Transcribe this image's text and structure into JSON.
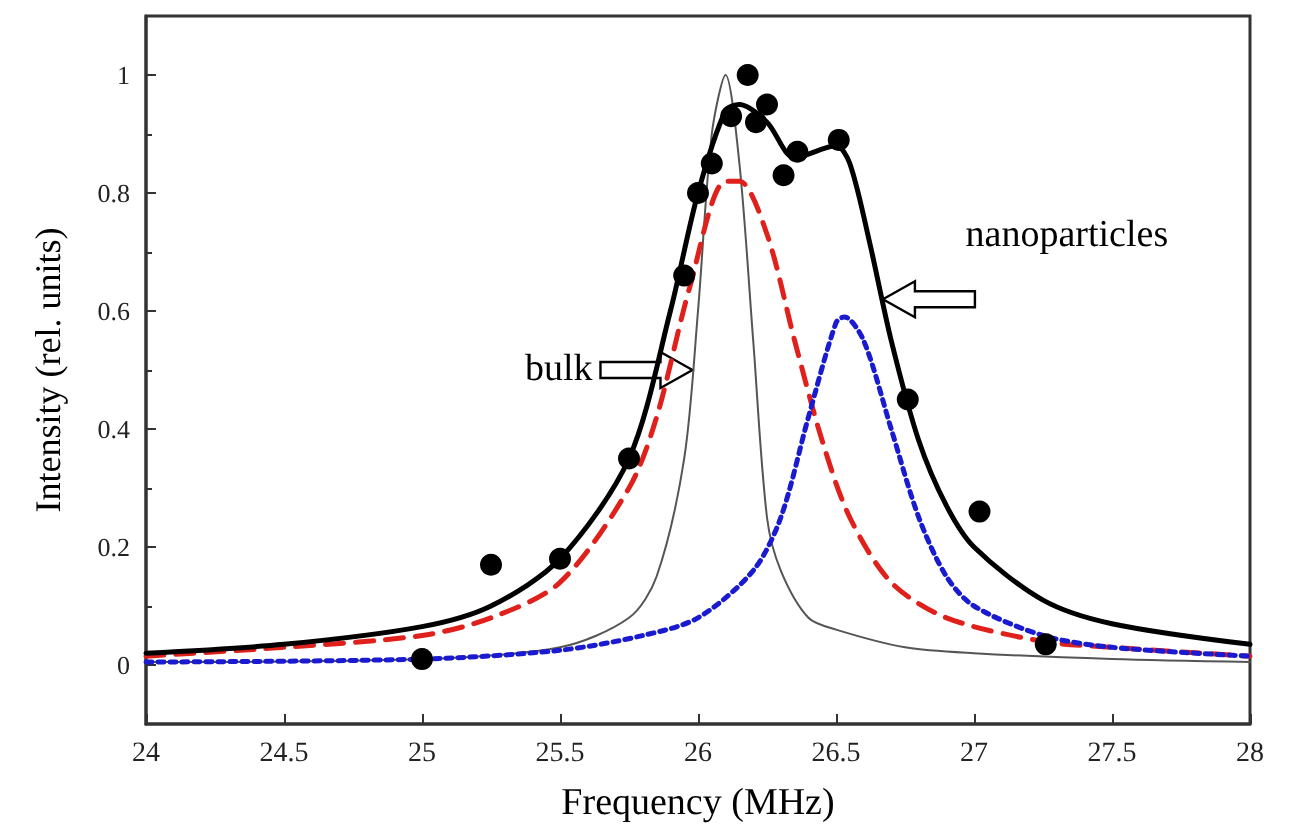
{
  "chart_data": {
    "type": "line",
    "xlabel": "Frequency (MHz)",
    "ylabel": "Intensity (rel. units)",
    "xlim": [
      24,
      28
    ],
    "xticks": [
      24,
      24.5,
      25,
      25.5,
      26,
      26.5,
      27,
      27.5,
      28
    ],
    "ylim": [
      -0.1,
      1.1
    ],
    "yticks": [
      0,
      0.2,
      0.4,
      0.6,
      0.8,
      1
    ],
    "grid": false,
    "series": [
      {
        "color": "#555555",
        "line_style": "solid",
        "marker": "none",
        "x": [
          24,
          25,
          25.5,
          25.75,
          25.85,
          25.95,
          26,
          26.05,
          26.1,
          26.15,
          26.2,
          26.25,
          26.3,
          26.4,
          26.5,
          26.75,
          27,
          27.5,
          28
        ],
        "values": [
          0.005,
          0.01,
          0.03,
          0.08,
          0.15,
          0.35,
          0.6,
          0.9,
          1,
          0.85,
          0.55,
          0.25,
          0.16,
          0.08,
          0.06,
          0.03,
          0.02,
          0.01,
          0.005
        ]
      },
      {
        "color": "#e0201b",
        "line_style": "dashed",
        "marker": "none",
        "x": [
          24,
          24.5,
          25,
          25.25,
          25.5,
          25.75,
          25.85,
          25.97,
          26.1,
          26.15,
          26.25,
          26.35,
          26.45,
          26.55,
          26.7,
          26.9,
          27.25,
          27.5,
          28
        ],
        "values": [
          0.015,
          0.03,
          0.05,
          0.08,
          0.14,
          0.3,
          0.42,
          0.64,
          0.82,
          0.82,
          0.73,
          0.55,
          0.38,
          0.25,
          0.14,
          0.08,
          0.04,
          0.03,
          0.015
        ]
      },
      {
        "color": "#1a1ad0",
        "line_style": "dotted",
        "marker": "none",
        "x": [
          24,
          25,
          25.5,
          25.8,
          26,
          26.2,
          26.3,
          26.4,
          26.5,
          26.53,
          26.6,
          26.7,
          26.8,
          26.9,
          27,
          27.25,
          27.5,
          28
        ],
        "values": [
          0.005,
          0.01,
          0.025,
          0.05,
          0.08,
          0.16,
          0.25,
          0.42,
          0.58,
          0.59,
          0.55,
          0.4,
          0.25,
          0.15,
          0.1,
          0.05,
          0.03,
          0.015
        ]
      },
      {
        "color": "#000000",
        "line_style": "solid",
        "marker": "none",
        "x": [
          24,
          24.5,
          25,
          25.25,
          25.5,
          25.75,
          25.9,
          26,
          26.1,
          26.15,
          26.25,
          26.35,
          26.5,
          26.55,
          26.62,
          26.7,
          26.8,
          26.9,
          27,
          27.25,
          27.5,
          28
        ],
        "values": [
          0.02,
          0.035,
          0.065,
          0.1,
          0.18,
          0.35,
          0.6,
          0.8,
          0.94,
          0.95,
          0.92,
          0.86,
          0.88,
          0.85,
          0.72,
          0.55,
          0.38,
          0.27,
          0.2,
          0.11,
          0.07,
          0.035
        ]
      },
      {
        "type": "scatter",
        "color": "#000000",
        "marker": "circle",
        "x": [
          25,
          25.25,
          25.5,
          25.75,
          25.95,
          26,
          26.05,
          26.12,
          26.18,
          26.21,
          26.25,
          26.31,
          26.36,
          26.51,
          26.76,
          27.02,
          27.26
        ],
        "values": [
          0.01,
          0.17,
          0.18,
          0.35,
          0.66,
          0.8,
          0.85,
          0.93,
          1,
          0.92,
          0.95,
          0.83,
          0.87,
          0.89,
          0.45,
          0.26,
          0.035
        ]
      }
    ],
    "annotations": [
      {
        "text": "bulk",
        "x": 25.98,
        "y": 0.5
      },
      {
        "text": "nanoparticles",
        "x": 26.67,
        "y": 0.62
      }
    ]
  }
}
